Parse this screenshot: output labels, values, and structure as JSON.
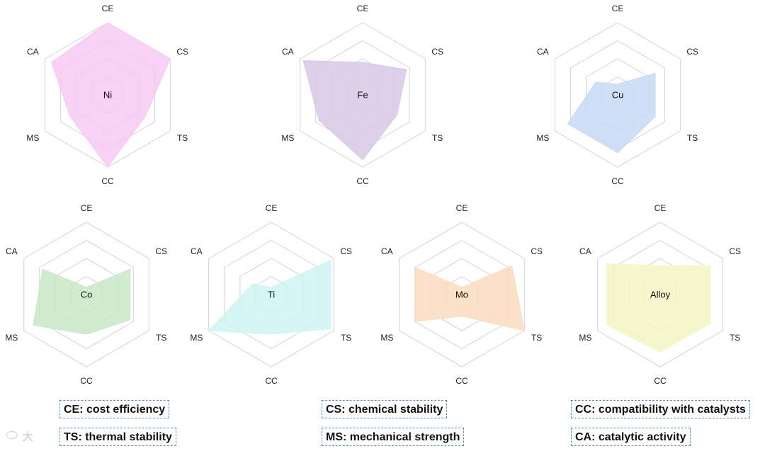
{
  "chart_data": [
    {
      "type": "radar",
      "label": "Ni",
      "color": "#f7c9f2",
      "axes": [
        "CE",
        "CS",
        "TS",
        "CC",
        "MS",
        "CA"
      ],
      "values": [
        1.0,
        1.0,
        0.6,
        1.0,
        0.6,
        0.9
      ],
      "rlim": [
        0,
        1
      ],
      "levels": 4
    },
    {
      "type": "radar",
      "label": "Fe",
      "color": "#d9c8e6",
      "axes": [
        "CE",
        "CS",
        "TS",
        "CC",
        "MS",
        "CA"
      ],
      "values": [
        0.45,
        0.7,
        0.55,
        0.9,
        0.7,
        0.95
      ],
      "rlim": [
        0,
        1
      ],
      "levels": 4
    },
    {
      "type": "radar",
      "label": "Cu",
      "color": "#c6d9f4",
      "axes": [
        "CE",
        "CS",
        "TS",
        "CC",
        "MS",
        "CA"
      ],
      "values": [
        0.15,
        0.6,
        0.6,
        0.8,
        0.8,
        0.35
      ],
      "rlim": [
        0,
        1
      ],
      "levels": 4
    },
    {
      "type": "radar",
      "label": "Co",
      "color": "#c9e8c6",
      "axes": [
        "CE",
        "CS",
        "TS",
        "CC",
        "MS",
        "CA"
      ],
      "values": [
        0.1,
        0.7,
        0.7,
        0.55,
        0.85,
        0.7
      ],
      "rlim": [
        0,
        1
      ],
      "levels": 4
    },
    {
      "type": "radar",
      "label": "Ti",
      "color": "#cff5f5",
      "axes": [
        "CE",
        "CS",
        "TS",
        "CC",
        "MS",
        "CA"
      ],
      "values": [
        0.1,
        0.95,
        0.95,
        0.55,
        1.0,
        0.3
      ],
      "rlim": [
        0,
        1
      ],
      "levels": 4
    },
    {
      "type": "radar",
      "label": "Mo",
      "color": "#fbdcbf",
      "axes": [
        "CE",
        "CS",
        "TS",
        "CC",
        "MS",
        "CA"
      ],
      "values": [
        0.1,
        0.8,
        1.0,
        0.3,
        0.75,
        0.75
      ],
      "rlim": [
        0,
        1
      ],
      "levels": 4
    },
    {
      "type": "radar",
      "label": "Alloy",
      "color": "#f6f6c4",
      "axes": [
        "CE",
        "CS",
        "TS",
        "CC",
        "MS",
        "CA"
      ],
      "values": [
        0.4,
        0.8,
        0.8,
        0.8,
        0.85,
        0.85
      ],
      "rlim": [
        0,
        1
      ],
      "levels": 4
    }
  ],
  "legend": [
    "CE: cost efficiency",
    "CS: chemical stability",
    "CC: compatibility with catalysts",
    "TS: thermal stability",
    "MS: mechanical strength",
    "CA: catalytic activity"
  ],
  "watermark": {
    "icon": "watermark-logo-icon",
    "text": "大"
  }
}
